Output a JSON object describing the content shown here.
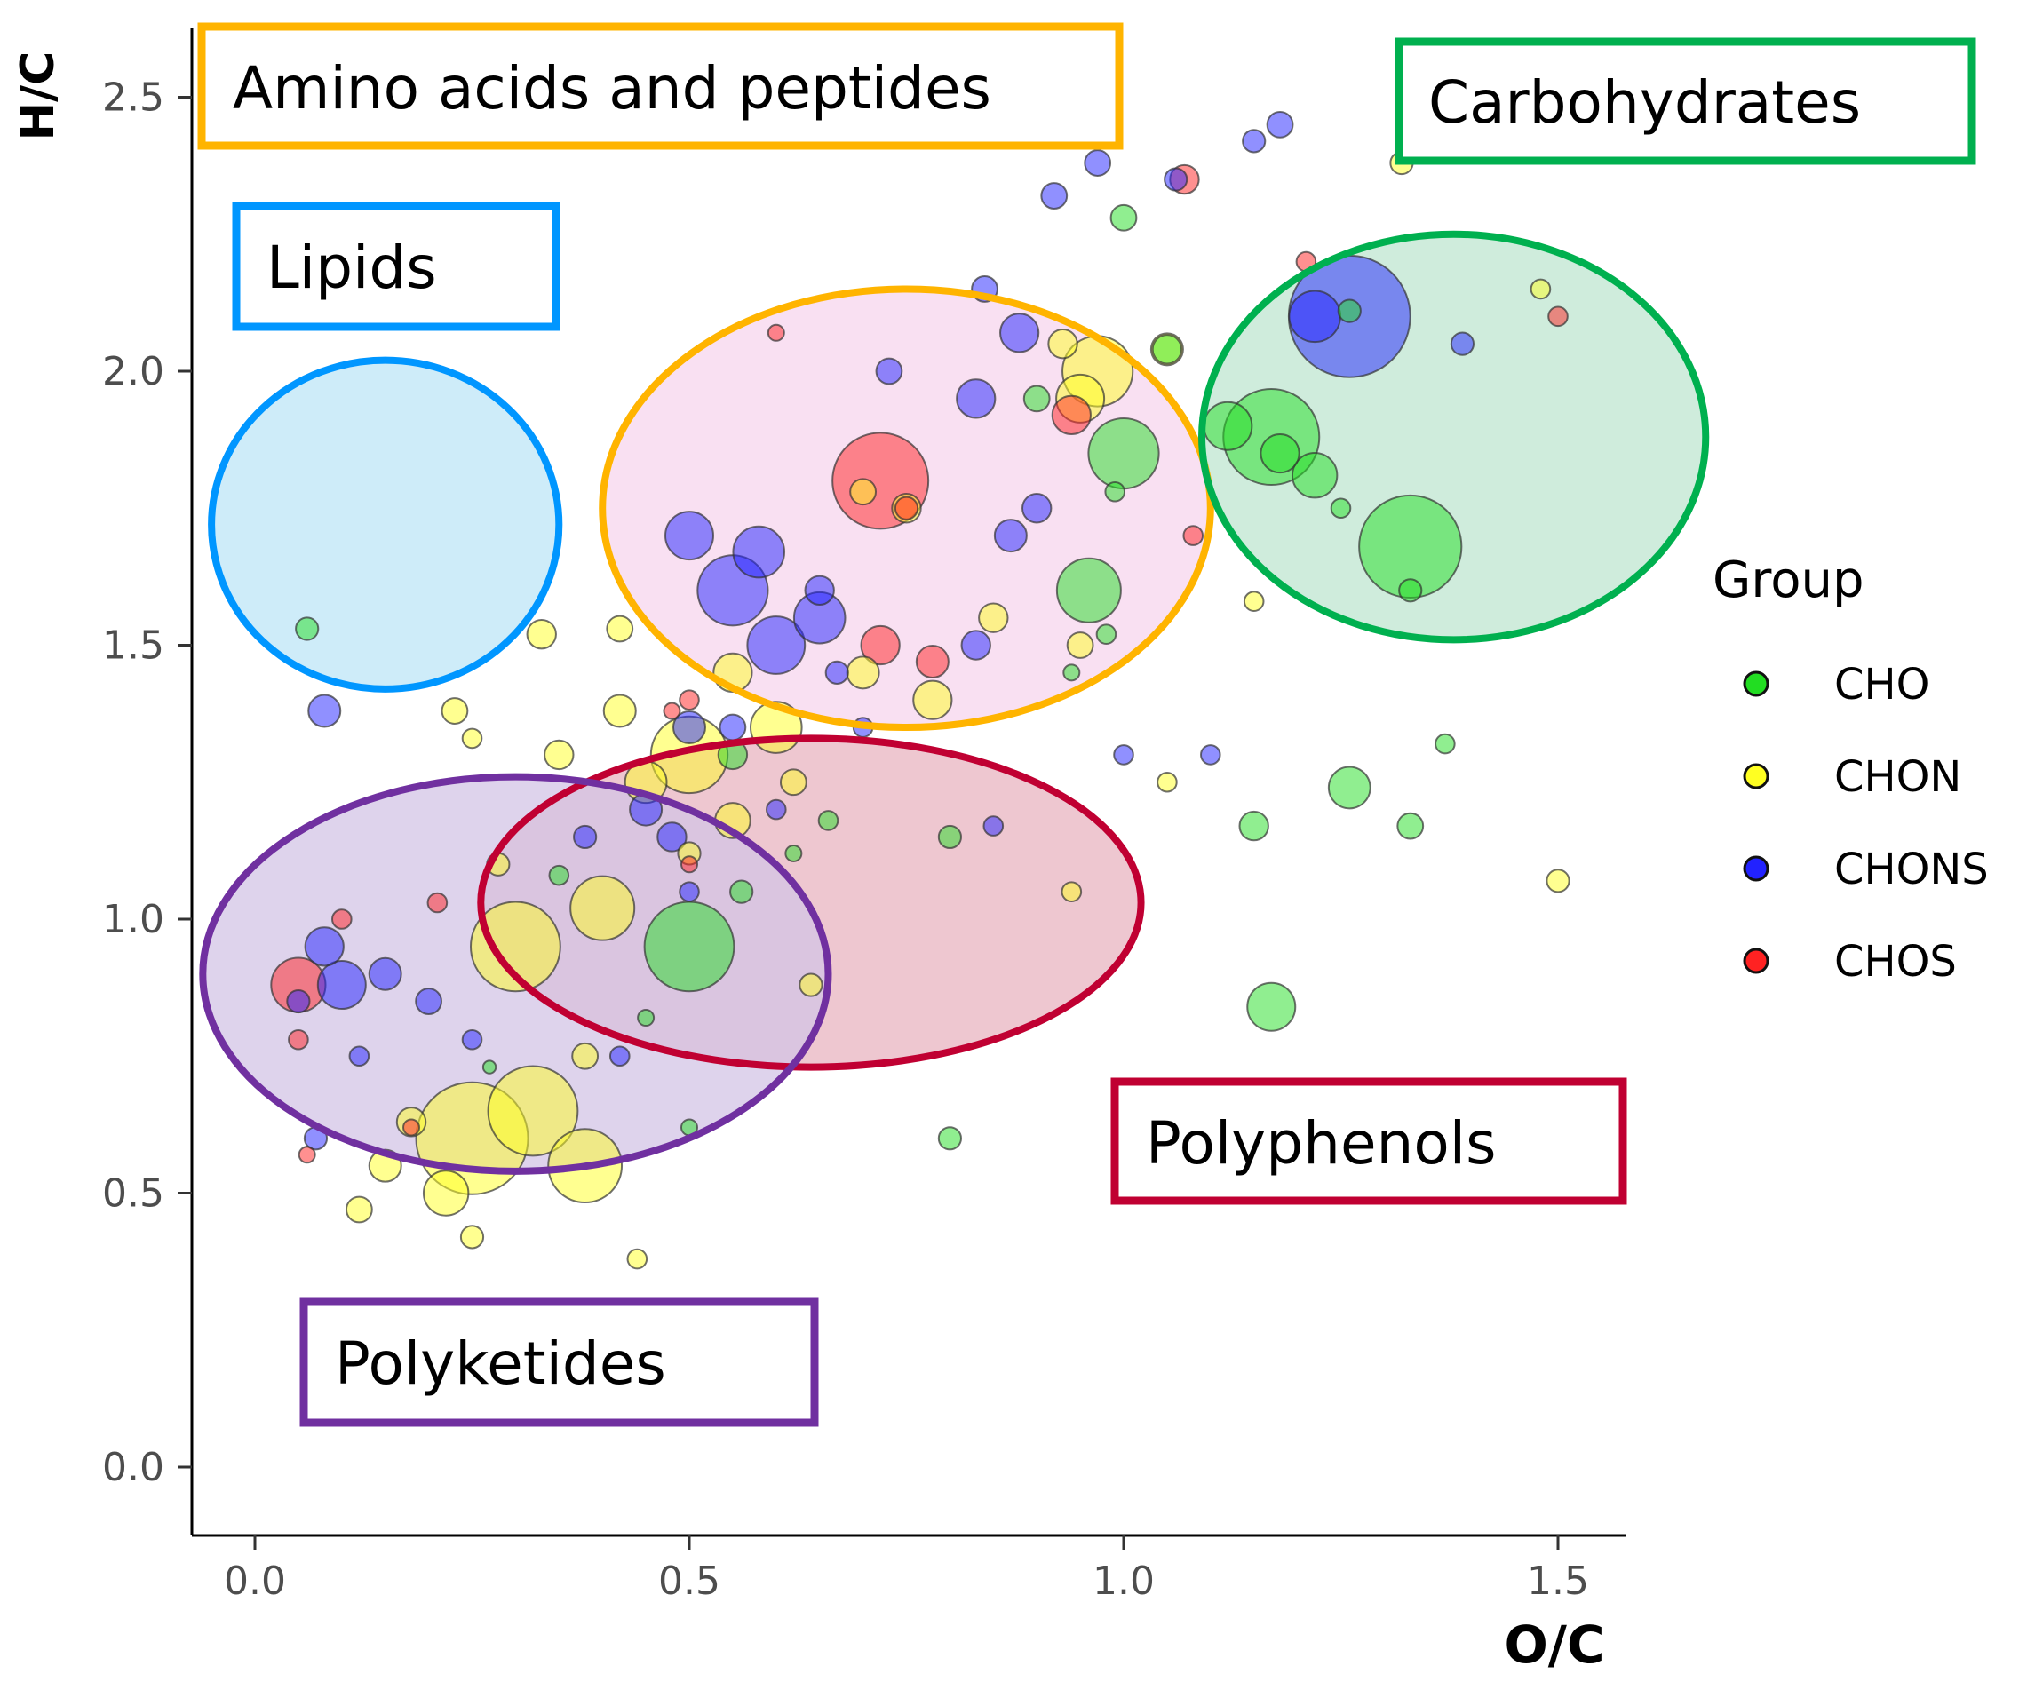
{
  "chart_data": {
    "type": "scatter",
    "variant": "bubble",
    "title": "",
    "xlabel": "O/C",
    "ylabel": "H/C",
    "xlim": [
      -0.08,
      1.58
    ],
    "ylim": [
      -0.12,
      2.62
    ],
    "xticks": [
      0.0,
      0.5,
      1.0,
      1.5
    ],
    "yticks": [
      0.0,
      0.5,
      1.0,
      1.5,
      2.0,
      2.5
    ],
    "xtick_labels": [
      "0.0",
      "0.5",
      "1.0",
      "1.5"
    ],
    "ytick_labels": [
      "0.0",
      "0.5",
      "1.0",
      "1.5",
      "2.0",
      "2.5"
    ],
    "grid": false,
    "legend": {
      "title": "Group",
      "position": "right",
      "entries": [
        {
          "label": "CHO",
          "color": "#22dd22"
        },
        {
          "label": "CHON",
          "color": "#ffff22"
        },
        {
          "label": "CHONS",
          "color": "#2222ff"
        },
        {
          "label": "CHOS",
          "color": "#ff2222"
        }
      ]
    },
    "regions": [
      {
        "label": "Amino acids and peptides",
        "color": "#ffb400",
        "fill": "#f7d6ee",
        "center": [
          0.75,
          1.75
        ],
        "radii": [
          0.35,
          0.4
        ]
      },
      {
        "label": "Lipids",
        "color": "#0096ff",
        "fill": "#bde6f7",
        "center": [
          0.15,
          1.72
        ],
        "radii": [
          0.2,
          0.3
        ]
      },
      {
        "label": "Carbohydrates",
        "color": "#00b04f",
        "fill": "#bfe6d0",
        "center": [
          1.38,
          1.88
        ],
        "radii": [
          0.29,
          0.37
        ]
      },
      {
        "label": "Polyphenols",
        "color": "#c00032",
        "fill": "#e8b4c0",
        "center": [
          0.64,
          1.03
        ],
        "radii": [
          0.38,
          0.3
        ]
      },
      {
        "label": "Polyketides",
        "color": "#7030a0",
        "fill": "#d3c4e6",
        "center": [
          0.3,
          0.9
        ],
        "radii": [
          0.36,
          0.36
        ]
      }
    ],
    "series": [
      {
        "name": "CHO",
        "color": "#22dd22",
        "points": [
          [
            1.0,
            1.85,
            2.2
          ],
          [
            0.96,
            1.6,
            2.0
          ],
          [
            1.17,
            1.88,
            3.0
          ],
          [
            1.22,
            1.81,
            1.4
          ],
          [
            1.33,
            1.68,
            3.2
          ],
          [
            1.26,
            1.24,
            1.3
          ],
          [
            1.17,
            0.84,
            1.5
          ],
          [
            1.15,
            1.17,
            0.9
          ],
          [
            1.33,
            1.17,
            0.8
          ],
          [
            1.37,
            1.32,
            0.6
          ],
          [
            0.8,
            0.6,
            0.7
          ],
          [
            0.5,
            0.95,
            2.8
          ],
          [
            0.5,
            0.62,
            0.5
          ],
          [
            0.8,
            1.15,
            0.7
          ],
          [
            0.98,
            1.52,
            0.6
          ],
          [
            0.9,
            1.95,
            0.8
          ],
          [
            1.05,
            2.04,
            0.9
          ],
          [
            1.0,
            2.28,
            0.8
          ],
          [
            1.26,
            2.11,
            0.7
          ],
          [
            1.33,
            1.6,
            0.7
          ],
          [
            1.25,
            1.75,
            0.6
          ],
          [
            0.55,
            1.3,
            0.9
          ],
          [
            0.66,
            1.18,
            0.6
          ],
          [
            0.56,
            1.05,
            0.7
          ],
          [
            0.35,
            1.08,
            0.6
          ],
          [
            0.45,
            0.82,
            0.5
          ],
          [
            0.27,
            0.73,
            0.4
          ],
          [
            0.06,
            1.53,
            0.7
          ],
          [
            0.94,
            1.45,
            0.5
          ],
          [
            0.99,
            1.78,
            0.6
          ],
          [
            0.62,
            1.12,
            0.5
          ],
          [
            1.12,
            1.9,
            1.5
          ],
          [
            1.18,
            1.85,
            1.2
          ]
        ]
      },
      {
        "name": "CHON",
        "color": "#ffff22",
        "points": [
          [
            0.25,
            0.6,
            3.5
          ],
          [
            0.32,
            0.65,
            2.8
          ],
          [
            0.38,
            0.55,
            2.3
          ],
          [
            0.22,
            0.5,
            1.4
          ],
          [
            0.15,
            0.55,
            1.0
          ],
          [
            0.12,
            0.47,
            0.8
          ],
          [
            0.18,
            0.63,
            0.9
          ],
          [
            0.3,
            0.95,
            2.8
          ],
          [
            0.4,
            1.02,
            2.0
          ],
          [
            0.5,
            1.3,
            2.4
          ],
          [
            0.6,
            1.35,
            1.6
          ],
          [
            0.45,
            1.25,
            1.3
          ],
          [
            0.35,
            1.3,
            0.9
          ],
          [
            0.28,
            1.1,
            0.7
          ],
          [
            0.42,
            1.38,
            1.0
          ],
          [
            0.55,
            1.45,
            1.2
          ],
          [
            0.7,
            1.45,
            1.0
          ],
          [
            0.78,
            1.4,
            1.2
          ],
          [
            0.85,
            1.55,
            0.9
          ],
          [
            0.95,
            1.5,
            0.8
          ],
          [
            0.97,
            2.0,
            2.2
          ],
          [
            0.95,
            1.95,
            1.5
          ],
          [
            1.05,
            2.04,
            1.0
          ],
          [
            0.93,
            2.05,
            0.9
          ],
          [
            0.7,
            1.78,
            0.8
          ],
          [
            0.75,
            1.75,
            0.9
          ],
          [
            0.33,
            1.52,
            0.9
          ],
          [
            0.42,
            1.53,
            0.8
          ],
          [
            0.23,
            1.38,
            0.8
          ],
          [
            0.25,
            1.33,
            0.6
          ],
          [
            0.94,
            1.05,
            0.6
          ],
          [
            1.05,
            1.25,
            0.6
          ],
          [
            1.5,
            1.07,
            0.7
          ],
          [
            1.48,
            2.15,
            0.6
          ],
          [
            1.32,
            2.38,
            0.7
          ],
          [
            1.15,
            1.58,
            0.6
          ],
          [
            0.44,
            0.38,
            0.6
          ],
          [
            0.25,
            0.42,
            0.7
          ],
          [
            0.5,
            1.12,
            0.7
          ],
          [
            0.62,
            1.25,
            0.8
          ],
          [
            0.55,
            1.18,
            1.1
          ],
          [
            0.38,
            0.75,
            0.8
          ],
          [
            0.64,
            0.88,
            0.7
          ]
        ]
      },
      {
        "name": "CHONS",
        "color": "#2222ff",
        "points": [
          [
            1.26,
            2.1,
            3.8
          ],
          [
            1.22,
            2.1,
            1.6
          ],
          [
            0.88,
            2.07,
            1.2
          ],
          [
            0.84,
            2.15,
            0.8
          ],
          [
            0.92,
            2.32,
            0.8
          ],
          [
            1.15,
            2.42,
            0.7
          ],
          [
            1.18,
            2.45,
            0.8
          ],
          [
            0.83,
            1.95,
            1.2
          ],
          [
            0.9,
            1.75,
            0.9
          ],
          [
            0.87,
            1.7,
            1.0
          ],
          [
            0.55,
            1.6,
            2.2
          ],
          [
            0.6,
            1.5,
            1.8
          ],
          [
            0.65,
            1.55,
            1.6
          ],
          [
            0.5,
            1.7,
            1.5
          ],
          [
            0.58,
            1.67,
            1.6
          ],
          [
            0.73,
            2.0,
            0.8
          ],
          [
            0.65,
            1.6,
            0.9
          ],
          [
            0.67,
            1.45,
            0.7
          ],
          [
            0.7,
            1.35,
            0.6
          ],
          [
            0.83,
            1.5,
            0.9
          ],
          [
            0.55,
            1.35,
            0.8
          ],
          [
            0.5,
            1.35,
            1.0
          ],
          [
            0.45,
            1.2,
            1.0
          ],
          [
            0.48,
            1.15,
            0.9
          ],
          [
            0.38,
            1.15,
            0.7
          ],
          [
            0.1,
            0.88,
            1.5
          ],
          [
            0.08,
            0.95,
            1.2
          ],
          [
            0.15,
            0.9,
            1.0
          ],
          [
            0.2,
            0.85,
            0.8
          ],
          [
            0.05,
            0.85,
            0.7
          ],
          [
            0.08,
            1.38,
            1.0
          ],
          [
            1.0,
            1.3,
            0.6
          ],
          [
            1.1,
            1.3,
            0.6
          ],
          [
            0.6,
            1.2,
            0.6
          ],
          [
            0.85,
            1.17,
            0.6
          ],
          [
            0.07,
            0.6,
            0.7
          ],
          [
            0.12,
            0.75,
            0.6
          ],
          [
            0.25,
            0.78,
            0.6
          ],
          [
            0.42,
            0.75,
            0.6
          ],
          [
            0.5,
            1.05,
            0.6
          ],
          [
            0.97,
            2.38,
            0.8
          ],
          [
            1.06,
            2.35,
            0.7
          ],
          [
            1.39,
            2.05,
            0.7
          ]
        ]
      },
      {
        "name": "CHOS",
        "color": "#ff2222",
        "points": [
          [
            0.72,
            1.8,
            3.0
          ],
          [
            0.75,
            1.75,
            0.7
          ],
          [
            0.94,
            1.92,
            1.2
          ],
          [
            1.07,
            2.35,
            0.9
          ],
          [
            1.08,
            1.7,
            0.6
          ],
          [
            1.21,
            2.2,
            0.6
          ],
          [
            1.5,
            2.1,
            0.6
          ],
          [
            0.6,
            2.07,
            0.5
          ],
          [
            0.72,
            1.5,
            1.2
          ],
          [
            0.78,
            1.47,
            1.0
          ],
          [
            0.5,
            1.4,
            0.6
          ],
          [
            0.48,
            1.38,
            0.5
          ],
          [
            0.05,
            0.88,
            1.7
          ],
          [
            0.05,
            0.78,
            0.6
          ],
          [
            0.1,
            1.0,
            0.6
          ],
          [
            0.21,
            1.03,
            0.6
          ],
          [
            0.06,
            0.57,
            0.5
          ],
          [
            0.18,
            0.62,
            0.5
          ],
          [
            0.5,
            1.1,
            0.5
          ]
        ]
      }
    ]
  },
  "region_labels": {
    "amino": "Amino acids and peptides",
    "lipids": "Lipids",
    "carbohydrates": "Carbohydrates",
    "polyphenols": "Polyphenols",
    "polyketides": "Polyketides"
  }
}
